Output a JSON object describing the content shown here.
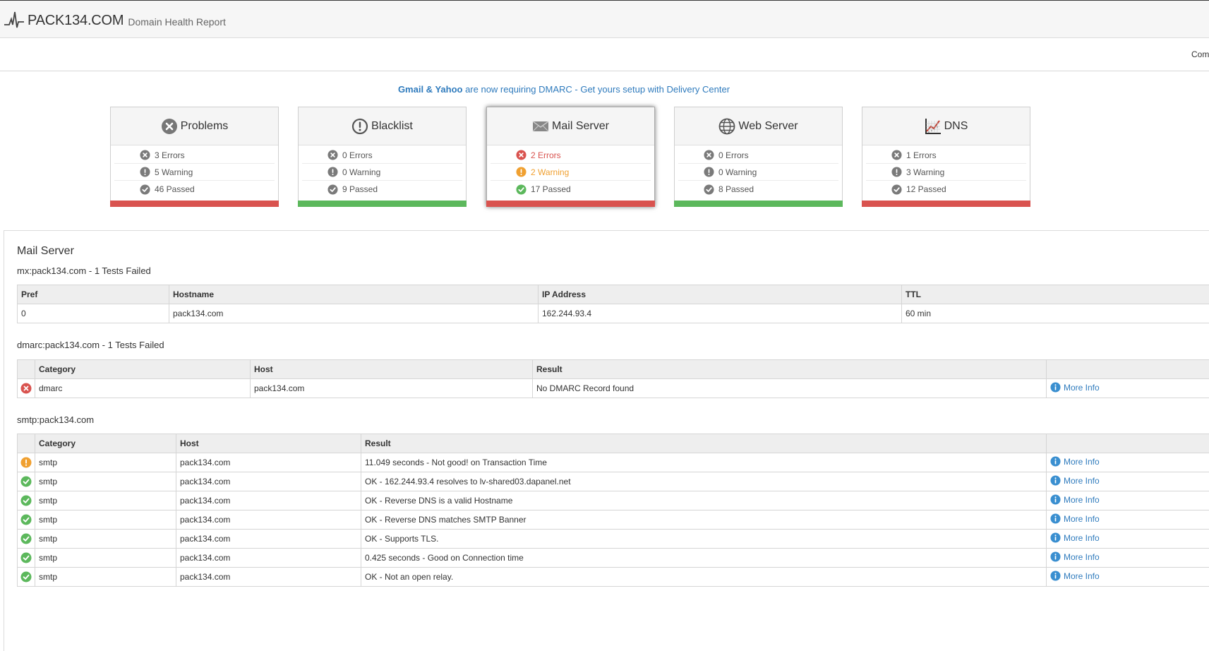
{
  "header": {
    "brand_name": "PACK134.COM",
    "brand_sub": "Domain Health Report",
    "nav_partial": "Com"
  },
  "banner": {
    "strong": "Gmail & Yahoo",
    "text": " are now requiring DMARC - Get yours setup with Delivery Center"
  },
  "cards": [
    {
      "title": "Problems",
      "icon": "x-circle-icon",
      "errors": "3 Errors",
      "warnings": "5 Warning",
      "passed": "46 Passed",
      "bar_color": "#d9534f"
    },
    {
      "title": "Blacklist",
      "icon": "exclamation-circle-icon",
      "errors": "0 Errors",
      "warnings": "0 Warning",
      "passed": "9 Passed",
      "bar_color": "#5cb85c"
    },
    {
      "title": "Mail Server",
      "icon": "envelope-icon",
      "errors": "2 Errors",
      "warnings": "2 Warning",
      "passed": "17 Passed",
      "bar_color": "#d9534f"
    },
    {
      "title": "Web Server",
      "icon": "globe-icon",
      "errors": "0 Errors",
      "warnings": "0 Warning",
      "passed": "8 Passed",
      "bar_color": "#5cb85c"
    },
    {
      "title": "DNS",
      "icon": "chart-icon",
      "errors": "1 Errors",
      "warnings": "3 Warning",
      "passed": "12 Passed",
      "bar_color": "#d9534f"
    }
  ],
  "section": {
    "title": "Mail Server",
    "mx": {
      "subtitle": "mx:pack134.com - 1 Tests Failed",
      "headers": [
        "Pref",
        "Hostname",
        "IP Address",
        "TTL"
      ],
      "rows": [
        [
          "0",
          "pack134.com",
          "162.244.93.4",
          "60 min"
        ]
      ]
    },
    "dmarc": {
      "subtitle": "dmarc:pack134.com - 1 Tests Failed",
      "headers": [
        "Category",
        "Host",
        "Result"
      ],
      "rows": [
        {
          "status": "error",
          "category": "dmarc",
          "host": "pack134.com",
          "result": "No DMARC Record found",
          "link": "More Info"
        }
      ]
    },
    "smtp": {
      "subtitle": "smtp:pack134.com",
      "headers": [
        "Category",
        "Host",
        "Result"
      ],
      "rows": [
        {
          "status": "warning",
          "category": "smtp",
          "host": "pack134.com",
          "result": "11.049 seconds - Not good! on Transaction Time",
          "link": "More Info"
        },
        {
          "status": "ok",
          "category": "smtp",
          "host": "pack134.com",
          "result": "OK - 162.244.93.4 resolves to lv-shared03.dapanel.net",
          "link": "More Info"
        },
        {
          "status": "ok",
          "category": "smtp",
          "host": "pack134.com",
          "result": "OK - Reverse DNS is a valid Hostname",
          "link": "More Info"
        },
        {
          "status": "ok",
          "category": "smtp",
          "host": "pack134.com",
          "result": "OK - Reverse DNS matches SMTP Banner",
          "link": "More Info"
        },
        {
          "status": "ok",
          "category": "smtp",
          "host": "pack134.com",
          "result": "OK - Supports TLS.",
          "link": "More Info"
        },
        {
          "status": "ok",
          "category": "smtp",
          "host": "pack134.com",
          "result": "0.425 seconds - Good on Connection time",
          "link": "More Info"
        },
        {
          "status": "ok",
          "category": "smtp",
          "host": "pack134.com",
          "result": "OK - Not an open relay.",
          "link": "More Info"
        }
      ]
    }
  },
  "colors": {
    "error": "#d9534f",
    "warning": "#f0a030",
    "ok": "#5cb85c",
    "neutral": "#7a7a7a",
    "link": "#2f7bbd"
  }
}
